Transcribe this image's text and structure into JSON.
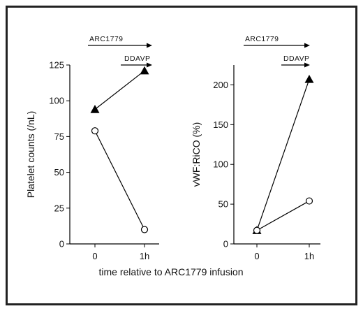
{
  "xlabel": "time relative to ARC1779 infusion",
  "chart_data": [
    {
      "type": "line",
      "ylabel": "Platelet counts (/nL)",
      "xlabel": "",
      "categories": [
        "0",
        "1h"
      ],
      "ylim": [
        0,
        125
      ],
      "yticks": [
        0,
        25,
        50,
        75,
        100,
        125
      ],
      "grid": false,
      "annotations": [
        "ARC1779",
        "DDAVP"
      ],
      "series": [
        {
          "marker": "filled-triangle",
          "color": "#000000",
          "values": [
            94,
            121
          ]
        },
        {
          "marker": "open-circle",
          "color": "#000000",
          "values": [
            79,
            10
          ]
        }
      ]
    },
    {
      "type": "line",
      "ylabel": "vWF:RiCO (%)",
      "xlabel": "",
      "categories": [
        "0",
        "1h"
      ],
      "ylim": [
        0,
        225
      ],
      "yticks": [
        0,
        50,
        100,
        150,
        200
      ],
      "grid": false,
      "annotations": [
        "ARC1779",
        "DDAVP"
      ],
      "series": [
        {
          "marker": "filled-triangle",
          "color": "#000000",
          "values": [
            17,
            207
          ]
        },
        {
          "marker": "open-circle",
          "color": "#000000",
          "values": [
            17,
            54
          ]
        }
      ]
    }
  ]
}
